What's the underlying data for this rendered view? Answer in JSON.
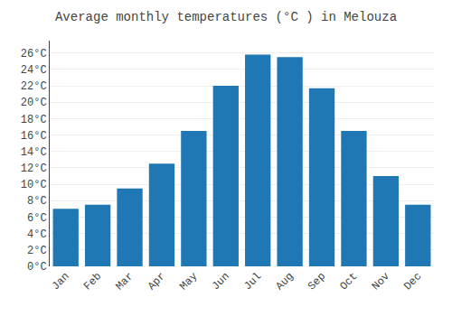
{
  "chart_data": {
    "type": "bar",
    "title": "Average monthly temperatures (°C ) in Melouza",
    "categories": [
      "Jan",
      "Feb",
      "Mar",
      "Apr",
      "May",
      "Jun",
      "Jul",
      "Aug",
      "Sep",
      "Oct",
      "Nov",
      "Dec"
    ],
    "values": [
      7.0,
      7.5,
      9.5,
      12.5,
      16.5,
      22.0,
      25.8,
      25.5,
      21.7,
      16.5,
      11.0,
      7.5
    ],
    "ylim": [
      0,
      27.5
    ],
    "yticks": [
      {
        "value": 0,
        "label": "0°C"
      },
      {
        "value": 2,
        "label": "2°C"
      },
      {
        "value": 4,
        "label": "4°C"
      },
      {
        "value": 6,
        "label": "6°C"
      },
      {
        "value": 8,
        "label": "8°C"
      },
      {
        "value": 10,
        "label": "10°C"
      },
      {
        "value": 12,
        "label": "12°C"
      },
      {
        "value": 14,
        "label": "14°C"
      },
      {
        "value": 16,
        "label": "16°C"
      },
      {
        "value": 18,
        "label": "18°C"
      },
      {
        "value": 20,
        "label": "20°C"
      },
      {
        "value": 22,
        "label": "22°C"
      },
      {
        "value": 24,
        "label": "24°C"
      },
      {
        "value": 26,
        "label": "26°C"
      }
    ],
    "grid": true
  }
}
